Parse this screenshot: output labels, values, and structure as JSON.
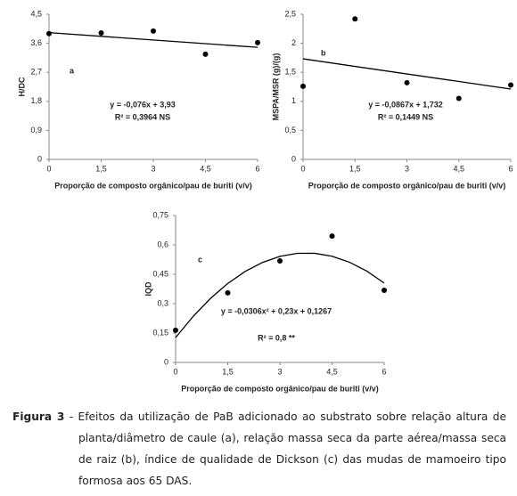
{
  "chart_data": [
    {
      "type": "scatter",
      "panel": "a",
      "ylabel": "H/DC",
      "xlabel": "Proporção de composto orgânico/pau de buriti (v/v)",
      "equation": "y = -0,076x + 3,93",
      "r2": "R² = 0,3964 NS",
      "color": "#000000",
      "x": [
        0,
        1.5,
        3,
        4.5,
        6
      ],
      "values": [
        3.9,
        3.92,
        3.98,
        3.26,
        3.62
      ],
      "trend": {
        "x": [
          0,
          6
        ],
        "values": [
          3.93,
          3.474
        ]
      },
      "xlim": [
        0,
        6
      ],
      "ylim": [
        0,
        4.5
      ],
      "xticks": [
        0,
        {
          "value": 1.5,
          "label": "1,5"
        },
        3,
        {
          "value": 4.5,
          "label": "4,5"
        },
        6
      ],
      "yticks": [
        0,
        {
          "value": 0.9,
          "label": "0,9"
        },
        {
          "value": 1.8,
          "label": "1,8"
        },
        {
          "value": 2.7,
          "label": "2,7"
        },
        {
          "value": 3.6,
          "label": "3,6"
        },
        {
          "value": 4.5,
          "label": "4,5"
        }
      ]
    },
    {
      "type": "scatter",
      "panel": "b",
      "ylabel": "MSPA/MSR (g)/(g)",
      "xlabel": "Proporção de composto orgânico/pau de buriti (v/v)",
      "equation": "y = -0,0867x + 1,732",
      "r2": "R² = 0,1449 NS",
      "color": "#000000",
      "x": [
        0,
        1.5,
        3,
        4.5,
        6
      ],
      "values": [
        1.26,
        2.42,
        1.32,
        1.05,
        1.28
      ],
      "trend": {
        "x": [
          0,
          6
        ],
        "values": [
          1.732,
          1.212
        ]
      },
      "xlim": [
        0,
        6
      ],
      "ylim": [
        0,
        2.5
      ],
      "xticks": [
        0,
        {
          "value": 1.5,
          "label": "1,5"
        },
        3,
        {
          "value": 4.5,
          "label": "4,5"
        },
        6
      ],
      "yticks": [
        0,
        {
          "value": 0.5,
          "label": "0,5"
        },
        1,
        {
          "value": 1.5,
          "label": "1,5"
        },
        2,
        {
          "value": 2.5,
          "label": "2,5"
        }
      ]
    },
    {
      "type": "scatter",
      "panel": "c",
      "ylabel": "IQD",
      "xlabel": "Proporção de composto orgânico/pau de buriti (v/v)",
      "equation": "y = -0,0306x² + 0,23x + 0,1267",
      "r2": "R² = 0,8 **",
      "color": "#000000",
      "x": [
        0,
        1.5,
        3,
        4.5,
        6
      ],
      "values": [
        0.164,
        0.355,
        0.518,
        0.645,
        0.368
      ],
      "trend": {
        "x": [
          0,
          0.5,
          1,
          1.5,
          2,
          2.5,
          3,
          3.5,
          4,
          4.5,
          5,
          5.5,
          6
        ],
        "values": [
          0.1267,
          0.234,
          0.3261,
          0.4029,
          0.4643,
          0.5104,
          0.5413,
          0.5569,
          0.5571,
          0.542,
          0.5117,
          0.466,
          0.4051
        ]
      },
      "xlim": [
        0,
        6
      ],
      "ylim": [
        0,
        0.75
      ],
      "xticks": [
        0,
        {
          "value": 1.5,
          "label": "1,5"
        },
        3,
        {
          "value": 4.5,
          "label": "4,5"
        },
        6
      ],
      "yticks": [
        0,
        {
          "value": 0.15,
          "label": "0,15"
        },
        {
          "value": 0.3,
          "label": "0,3"
        },
        {
          "value": 0.45,
          "label": "0,45"
        },
        {
          "value": 0.6,
          "label": "0,6"
        },
        {
          "value": 0.75,
          "label": "0,75"
        }
      ]
    }
  ],
  "caption": {
    "label": "Figura 3",
    "text": " - Efeitos da utilização de PaB adicionado ao substrato sobre relação altura de planta/diâmetro de caule (a), relação massa seca da parte aérea/massa seca de raiz (b), índice de qualidade de Dickson (c) das mudas de mamoeiro tipo formosa aos 65 DAS."
  }
}
